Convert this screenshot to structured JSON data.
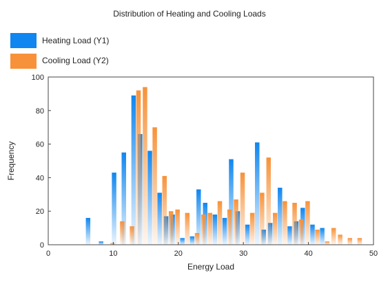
{
  "chart_data": {
    "type": "bar",
    "title": "Distribution of Heating and Cooling Loads",
    "xlabel": "Energy Load",
    "ylabel": "Frequency",
    "xlim": [
      0,
      50
    ],
    "ylim": [
      0,
      100
    ],
    "x_ticks": [
      0,
      10,
      20,
      30,
      40,
      50
    ],
    "y_ticks": [
      0,
      20,
      40,
      60,
      80,
      100
    ],
    "grid": false,
    "legend": "top-left",
    "series": [
      {
        "name": "Heating Load (Y1)",
        "color": "#0f86f0",
        "x": [
          6.5,
          8.5,
          10.5,
          12.0,
          13.5,
          14.5,
          16.0,
          17.5,
          18.5,
          19.5,
          21.0,
          22.5,
          23.5,
          24.5,
          26.0,
          27.5,
          28.5,
          29.5,
          31.0,
          32.5,
          33.5,
          34.5,
          36.0,
          37.5,
          38.5,
          39.5,
          41.0,
          42.5
        ],
        "values": [
          16,
          2,
          43,
          55,
          89,
          66,
          56,
          31,
          17,
          18,
          4,
          5,
          33,
          25,
          18,
          16,
          51,
          20,
          12,
          61,
          9,
          13,
          34,
          11,
          14,
          22,
          12,
          10
        ]
      },
      {
        "name": "Cooling Load (Y2)",
        "color": "#f7923a",
        "x": [
          9.5,
          11.0,
          12.5,
          13.5,
          14.5,
          16.0,
          17.5,
          18.5,
          19.5,
          21.0,
          22.5,
          23.5,
          24.5,
          26.0,
          27.5,
          28.5,
          29.5,
          31.0,
          32.5,
          33.5,
          34.5,
          36.0,
          37.5,
          38.5,
          39.5,
          41.0,
          42.5,
          43.5,
          44.5,
          46.0,
          47.5
        ],
        "values": [
          1,
          14,
          11,
          92,
          94,
          70,
          41,
          20,
          21,
          19,
          7,
          18,
          19,
          26,
          21,
          27,
          43,
          19,
          31,
          52,
          19,
          26,
          25,
          15,
          26,
          9,
          2,
          10,
          6,
          4,
          4
        ]
      }
    ]
  }
}
